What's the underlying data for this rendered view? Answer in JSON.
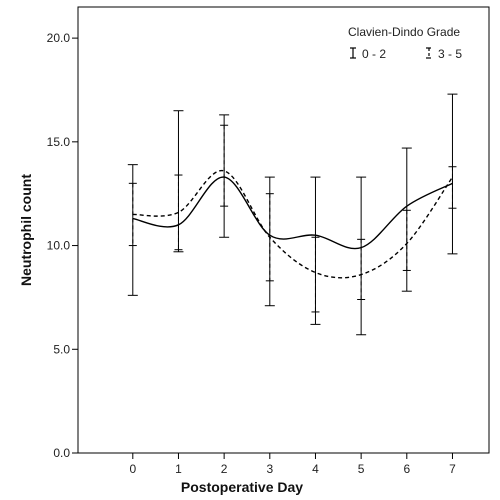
{
  "chart_data": {
    "type": "line",
    "xlabel": "Postoperative Day",
    "ylabel": "Neutrophil count",
    "x": [
      0,
      1,
      2,
      3,
      4,
      5,
      6,
      7
    ],
    "x_tick_labels": [
      "0",
      "1",
      "2",
      "3",
      "4",
      "5",
      "6",
      "7"
    ],
    "ylim": [
      0,
      21.5
    ],
    "xlim": [
      -1.2,
      7.8
    ],
    "y_ticks": [
      0,
      5,
      10,
      15,
      20
    ],
    "y_tick_labels": [
      "0.0",
      "5.0",
      "10.0",
      "15.0",
      "20.0"
    ],
    "grid": false,
    "legend": {
      "title": "Clavien-Dindo Grade",
      "placement": "top-right"
    },
    "series": [
      {
        "name": "0 - 2",
        "style": "solid",
        "color": "#000000",
        "mean": [
          11.3,
          11.0,
          13.3,
          10.5,
          10.5,
          9.9,
          11.9,
          13.0
        ],
        "lower": [
          7.6,
          9.7,
          10.4,
          7.1,
          6.2,
          5.7,
          7.8,
          9.6
        ],
        "upper": [
          13.9,
          16.5,
          16.3,
          13.3,
          13.3,
          13.3,
          14.7,
          17.3
        ]
      },
      {
        "name": "3 - 5",
        "style": "dashed",
        "color": "#000000",
        "mean": [
          11.5,
          11.6,
          13.6,
          10.4,
          8.7,
          8.6,
          10.1,
          13.3
        ],
        "lower": [
          10.0,
          9.8,
          11.9,
          8.3,
          6.8,
          7.4,
          8.8,
          11.8
        ],
        "upper": [
          13.0,
          13.4,
          15.8,
          12.5,
          10.4,
          10.3,
          11.7,
          13.8
        ]
      }
    ]
  }
}
